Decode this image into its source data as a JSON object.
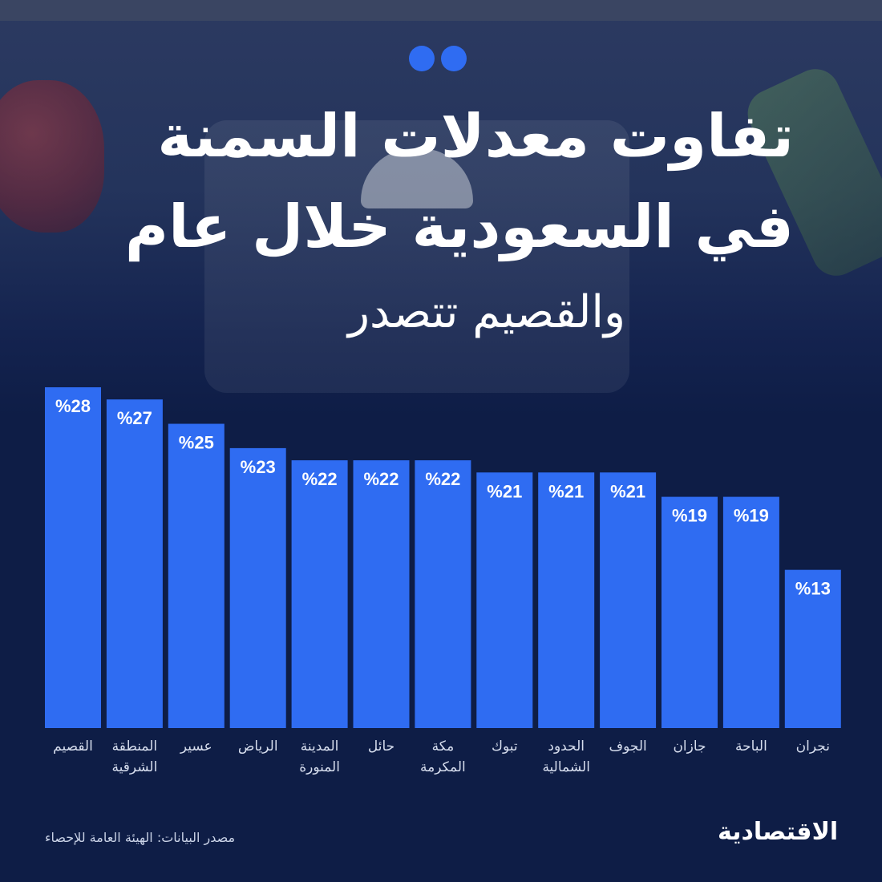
{
  "header": {
    "title_line1": "تفاوت معدلات السمنة",
    "title_line2": "في السعودية خلال عام",
    "subtitle": "والقصيم تتصدر"
  },
  "footer": {
    "source": "مصدر البيانات: الهيئة العامة للإحصاء",
    "brand": "الاقتصادية"
  },
  "colors": {
    "bar": "#2f6cf2",
    "background": "#0e1d46",
    "value_text": "#ffffff",
    "label_text": "#d7deee"
  },
  "chart_data": {
    "type": "bar",
    "categories": [
      "القصيم",
      "المنطقة الشرقية",
      "عسير",
      "الرياض",
      "المدينة المنورة",
      "حائل",
      "مكة المكرمة",
      "تبوك",
      "الحدود الشمالية",
      "الجوف",
      "جازان",
      "الباحة",
      "نجران"
    ],
    "category_lines": [
      [
        "القصيم"
      ],
      [
        "المنطقة",
        "الشرقية"
      ],
      [
        "عسير"
      ],
      [
        "الرياض"
      ],
      [
        "المدينة",
        "المنورة"
      ],
      [
        "حائل"
      ],
      [
        "مكة",
        "المكرمة"
      ],
      [
        "تبوك"
      ],
      [
        "الحدود",
        "الشمالية"
      ],
      [
        "الجوف"
      ],
      [
        "جازان"
      ],
      [
        "الباحة"
      ],
      [
        "نجران"
      ]
    ],
    "values": [
      28,
      27,
      25,
      23,
      22,
      22,
      22,
      21,
      21,
      21,
      19,
      19,
      13
    ],
    "value_labels": [
      "%28",
      "%27",
      "%25",
      "%23",
      "%22",
      "%22",
      "%22",
      "%21",
      "%21",
      "%21",
      "%19",
      "%19",
      "%13"
    ],
    "title": "",
    "xlabel": "",
    "ylabel": "",
    "ylim": [
      0,
      28
    ],
    "grid": false,
    "legend": "none"
  }
}
